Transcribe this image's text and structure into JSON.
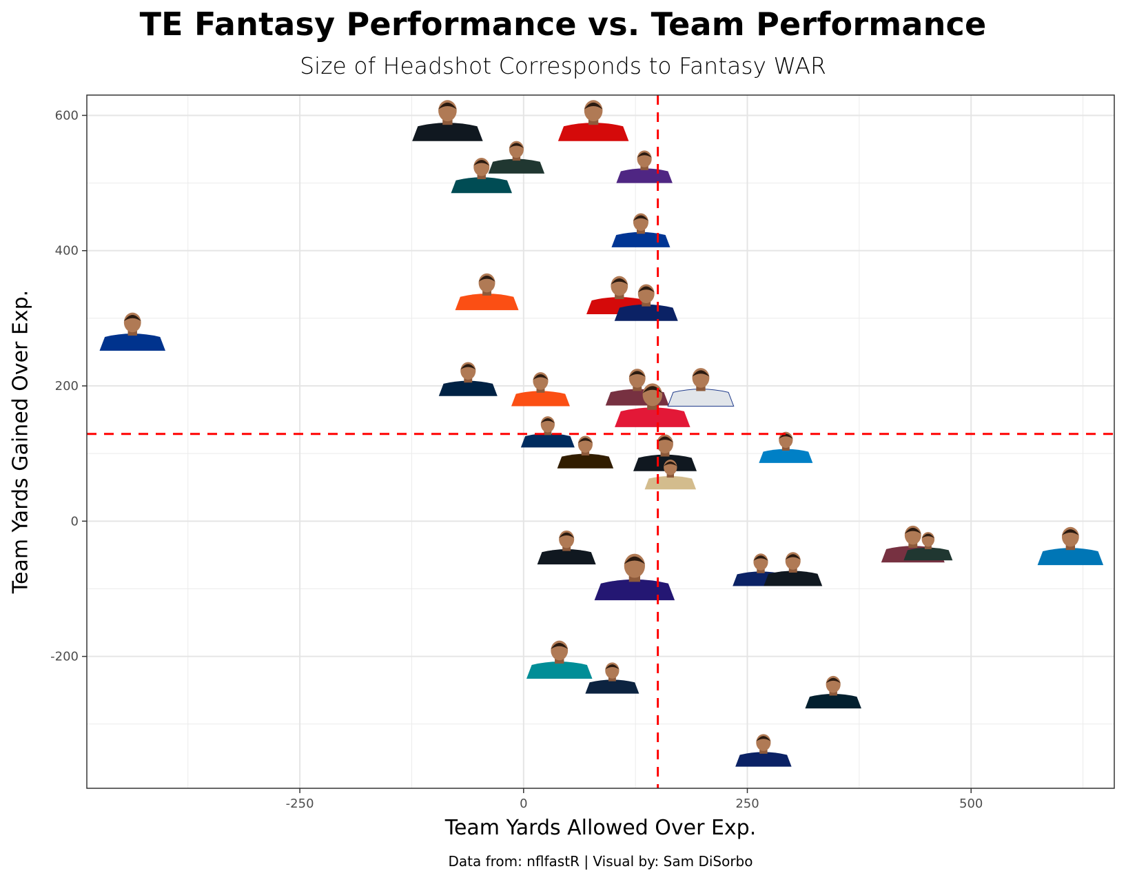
{
  "chart_data": {
    "type": "scatter",
    "title": "TE Fantasy Performance vs. Team Performance",
    "subtitle": "Size of Headshot Corresponds to Fantasy WAR",
    "xlabel": "Team Yards Allowed Over Exp.",
    "ylabel": "Team Yards Gained Over Exp.",
    "caption": "Data from: nflfastR | Visual by: Sam DiSorbo",
    "xlim": [
      -488,
      660
    ],
    "ylim": [
      -395,
      630
    ],
    "x_ticks": [
      -250,
      0,
      250,
      500
    ],
    "x_tick_labels": [
      "-250",
      "0",
      "250",
      "500"
    ],
    "y_ticks": [
      -200,
      0,
      200,
      400,
      600
    ],
    "y_tick_labels": [
      "-200",
      "0",
      "200",
      "400",
      "600"
    ],
    "x_minor": [
      -375,
      -125,
      125,
      375,
      625
    ],
    "y_minor": [
      -300,
      -100,
      100,
      300,
      500
    ],
    "grid": true,
    "reference_lines": {
      "x": 150,
      "y": 129,
      "color": "#ff0000",
      "style": "dashed"
    },
    "point_marker": "player headshot (size = fantasy WAR)",
    "points": [
      {
        "team_color": "#101820",
        "x": -85,
        "y": 562,
        "war": 0.75
      },
      {
        "team_color": "#d50a0a",
        "x": 78,
        "y": 562,
        "war": 0.75
      },
      {
        "team_color": "#203731",
        "x": -8,
        "y": 514,
        "war": 0.45
      },
      {
        "team_color": "#004c54",
        "x": -47,
        "y": 485,
        "war": 0.55
      },
      {
        "team_color": "#4f2683",
        "x": 135,
        "y": 500,
        "war": 0.45
      },
      {
        "team_color": "#003594",
        "x": 131,
        "y": 405,
        "war": 0.5
      },
      {
        "team_color": "#fb4f14",
        "x": -41,
        "y": 312,
        "war": 0.6
      },
      {
        "team_color": "#d50a0a",
        "x": 107,
        "y": 306,
        "war": 0.65
      },
      {
        "team_color": "#0b2265",
        "x": 137,
        "y": 296,
        "war": 0.6
      },
      {
        "team_color": "#00338d",
        "x": -437,
        "y": 252,
        "war": 0.65
      },
      {
        "team_color": "#002244",
        "x": -62,
        "y": 185,
        "war": 0.5
      },
      {
        "team_color": "#fb4f14",
        "x": 19,
        "y": 170,
        "war": 0.5
      },
      {
        "team_color": "#773141",
        "x": 127,
        "y": 171,
        "war": 0.6
      },
      {
        "team_color": "#e1e5ea",
        "x": 198,
        "y": 170,
        "war": 0.65
      },
      {
        "team_color": "#e31837",
        "x": 144,
        "y": 139,
        "war": 0.85
      },
      {
        "team_color": "#002c5f",
        "x": 27,
        "y": 109,
        "war": 0.4
      },
      {
        "team_color": "#311d00",
        "x": 69,
        "y": 78,
        "war": 0.45
      },
      {
        "team_color": "#101820",
        "x": 158,
        "y": 74,
        "war": 0.6
      },
      {
        "team_color": "#0080c6",
        "x": 293,
        "y": 86,
        "war": 0.4
      },
      {
        "team_color": "#d3bc8d",
        "x": 164,
        "y": 47,
        "war": 0.35
      },
      {
        "team_color": "#101820",
        "x": 48,
        "y": -64,
        "war": 0.5
      },
      {
        "team_color": "#241773",
        "x": 124,
        "y": -117,
        "war": 0.95
      },
      {
        "team_color": "#0b2265",
        "x": 265,
        "y": -96,
        "war": 0.45
      },
      {
        "team_color": "#101820",
        "x": 301,
        "y": -96,
        "war": 0.5
      },
      {
        "team_color": "#773141",
        "x": 435,
        "y": -61,
        "war": 0.6
      },
      {
        "team_color": "#203731",
        "x": 452,
        "y": -58,
        "war": 0.3
      },
      {
        "team_color": "#0076b6",
        "x": 611,
        "y": -65,
        "war": 0.65
      },
      {
        "team_color": "#008e97",
        "x": 40,
        "y": -233,
        "war": 0.65
      },
      {
        "team_color": "#0c2340",
        "x": 99,
        "y": -255,
        "war": 0.4
      },
      {
        "team_color": "#03202f",
        "x": 346,
        "y": -277,
        "war": 0.45
      },
      {
        "team_color": "#0b2265",
        "x": 268,
        "y": -363,
        "war": 0.45
      }
    ]
  }
}
